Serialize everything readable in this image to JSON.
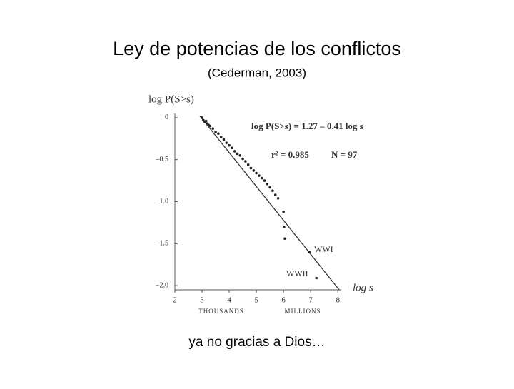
{
  "title": "Ley de potencias de los conflictos",
  "subtitle": "(Cederman, 2003)",
  "caption": "ya no gracias a Dios…",
  "chart_data": {
    "type": "scatter",
    "y_label": "log P(S>s)",
    "x_label": "log s",
    "x_groups": [
      "THOUSANDS",
      "MILLIONS"
    ],
    "annotations": {
      "equation": "log P(S>s) = 1.27 – 0.41 log s",
      "r2": "r² = 0.985",
      "n": "N = 97",
      "wwi": "WWI",
      "wwii": "WWII"
    },
    "color": "#222222",
    "x": [
      3.0,
      3.05,
      3.1,
      3.15,
      3.2,
      3.25,
      3.3,
      3.4,
      3.5,
      3.6,
      3.7,
      3.8,
      3.9,
      4.0,
      4.1,
      4.2,
      4.3,
      4.4,
      4.5,
      4.6,
      4.7,
      4.8,
      4.9,
      5.0,
      5.1,
      5.2,
      5.3,
      5.4,
      5.5,
      5.6,
      5.7,
      5.8,
      6.0,
      6.02,
      6.05,
      6.95,
      7.21
    ],
    "y": [
      0.0,
      -0.03,
      -0.05,
      -0.04,
      -0.07,
      -0.09,
      -0.1,
      -0.13,
      -0.17,
      -0.19,
      -0.23,
      -0.26,
      -0.3,
      -0.33,
      -0.36,
      -0.4,
      -0.43,
      -0.45,
      -0.49,
      -0.52,
      -0.56,
      -0.6,
      -0.63,
      -0.66,
      -0.69,
      -0.72,
      -0.75,
      -0.79,
      -0.83,
      -0.87,
      -0.92,
      -0.96,
      -1.12,
      -1.3,
      -1.44,
      -1.6,
      -1.91
    ],
    "fit_line": {
      "x": [
        2.92,
        8.05
      ],
      "y": [
        0.02,
        -2.05
      ]
    },
    "xlim": [
      2,
      8.1
    ],
    "ylim": [
      -2.05,
      0.05
    ],
    "xticks": [
      2,
      3,
      4,
      5,
      6,
      7,
      8
    ],
    "yticks": [
      0,
      {
        "value": -0.5,
        "label": "–0.5"
      },
      {
        "value": -1.0,
        "label": "−1.0"
      },
      {
        "value": -1.5,
        "label": "−1.5"
      },
      {
        "value": -2.0,
        "label": "−2.0"
      }
    ]
  }
}
